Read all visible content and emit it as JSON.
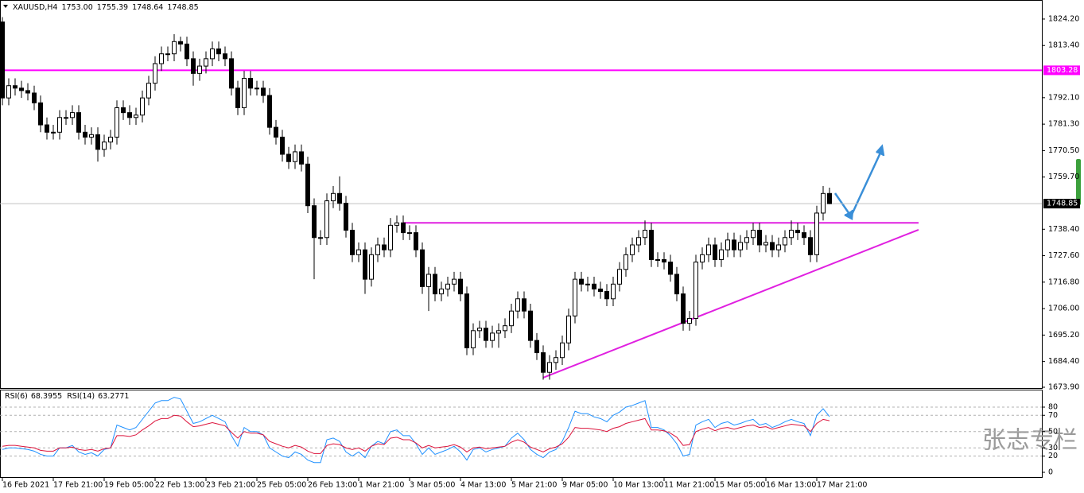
{
  "chart_data": [
    {
      "type": "candlestick",
      "title": "XAUUSD,H4",
      "header_values": [
        "1753.00",
        "1755.39",
        "1748.64",
        "1748.85"
      ],
      "open": [
        1823,
        1792,
        1797,
        1796,
        1795,
        1794,
        1790,
        1781,
        1778,
        1778,
        1784,
        1784,
        1786,
        1778,
        1776,
        1777,
        1771,
        1774,
        1776,
        1788,
        1786,
        1784,
        1785,
        1792,
        1798,
        1806,
        1810,
        1810,
        1815,
        1814,
        1808,
        1802,
        1805,
        1808,
        1812,
        1810,
        1808,
        1796,
        1788,
        1800,
        1796,
        1796,
        1793,
        1780,
        1776,
        1769,
        1766,
        1770,
        1765,
        1748,
        1735,
        1735,
        1750,
        1753,
        1749,
        1738,
        1728,
        1730,
        1718,
        1728,
        1732,
        1730,
        1740,
        1741,
        1737,
        1737,
        1730,
        1715,
        1720,
        1712,
        1714,
        1716,
        1718,
        1712,
        1690,
        1697,
        1698,
        1693,
        1696,
        1697,
        1699,
        1705,
        1710,
        1705,
        1693,
        1688,
        1680,
        1684,
        1686,
        1692,
        1703,
        1718,
        1716,
        1716,
        1714,
        1713,
        1710,
        1716,
        1722,
        1728,
        1732,
        1735,
        1738,
        1726,
        1726,
        1725,
        1720,
        1712,
        1700,
        1702,
        1725,
        1728,
        1732,
        1726,
        1730,
        1734,
        1730,
        1733,
        1735,
        1738,
        1732,
        1733,
        1730,
        1732,
        1735,
        1738,
        1737,
        1735,
        1728,
        1745,
        1753
      ],
      "high": [
        1825,
        1800,
        1800,
        1799,
        1798,
        1797,
        1793,
        1784,
        1781,
        1787,
        1787,
        1789,
        1789,
        1781,
        1780,
        1780,
        1777,
        1779,
        1791,
        1791,
        1789,
        1788,
        1795,
        1801,
        1809,
        1813,
        1813,
        1818,
        1817,
        1817,
        1811,
        1808,
        1811,
        1815,
        1815,
        1813,
        1811,
        1799,
        1803,
        1803,
        1799,
        1799,
        1796,
        1783,
        1779,
        1772,
        1773,
        1773,
        1768,
        1751,
        1738,
        1753,
        1756,
        1760,
        1752,
        1741,
        1733,
        1733,
        1731,
        1735,
        1735,
        1743,
        1744,
        1744,
        1740,
        1740,
        1733,
        1723,
        1723,
        1717,
        1719,
        1721,
        1721,
        1715,
        1700,
        1701,
        1701,
        1699,
        1700,
        1702,
        1708,
        1713,
        1713,
        1708,
        1696,
        1691,
        1687,
        1689,
        1695,
        1706,
        1721,
        1721,
        1719,
        1719,
        1717,
        1716,
        1719,
        1725,
        1731,
        1735,
        1738,
        1742,
        1741,
        1729,
        1729,
        1728,
        1723,
        1715,
        1705,
        1728,
        1731,
        1735,
        1735,
        1733,
        1737,
        1737,
        1736,
        1738,
        1741,
        1741,
        1736,
        1736,
        1735,
        1738,
        1742,
        1741,
        1740,
        1738,
        1748,
        1756,
        1755.39
      ],
      "low": [
        1789,
        1789,
        1793,
        1792,
        1791,
        1787,
        1778,
        1775,
        1775,
        1775,
        1781,
        1781,
        1775,
        1773,
        1773,
        1766,
        1768,
        1771,
        1773,
        1783,
        1781,
        1781,
        1782,
        1789,
        1795,
        1803,
        1807,
        1807,
        1811,
        1805,
        1797,
        1799,
        1802,
        1805,
        1807,
        1805,
        1793,
        1785,
        1785,
        1793,
        1793,
        1790,
        1777,
        1773,
        1766,
        1763,
        1763,
        1762,
        1745,
        1718,
        1732,
        1732,
        1747,
        1746,
        1735,
        1725,
        1725,
        1712,
        1715,
        1725,
        1727,
        1727,
        1737,
        1734,
        1734,
        1727,
        1712,
        1705,
        1709,
        1709,
        1711,
        1713,
        1709,
        1687,
        1687,
        1694,
        1690,
        1690,
        1690,
        1694,
        1696,
        1702,
        1702,
        1690,
        1685,
        1677,
        1677,
        1681,
        1683,
        1689,
        1700,
        1713,
        1713,
        1711,
        1710,
        1707,
        1707,
        1713,
        1719,
        1725,
        1729,
        1732,
        1723,
        1723,
        1722,
        1717,
        1709,
        1697,
        1697,
        1699,
        1722,
        1725,
        1723,
        1723,
        1727,
        1727,
        1727,
        1730,
        1732,
        1729,
        1729,
        1727,
        1727,
        1729,
        1732,
        1734,
        1732,
        1725,
        1725,
        1742,
        1748.64
      ],
      "close": [
        1792,
        1797,
        1796,
        1795,
        1794,
        1790,
        1781,
        1778,
        1778,
        1784,
        1784,
        1786,
        1778,
        1776,
        1777,
        1771,
        1774,
        1776,
        1788,
        1786,
        1784,
        1785,
        1792,
        1798,
        1806,
        1810,
        1810,
        1815,
        1814,
        1808,
        1802,
        1805,
        1808,
        1812,
        1810,
        1808,
        1796,
        1788,
        1800,
        1796,
        1796,
        1793,
        1780,
        1776,
        1769,
        1766,
        1770,
        1765,
        1748,
        1735,
        1735,
        1750,
        1753,
        1749,
        1738,
        1728,
        1730,
        1718,
        1728,
        1732,
        1730,
        1740,
        1741,
        1737,
        1737,
        1730,
        1715,
        1720,
        1712,
        1714,
        1716,
        1718,
        1712,
        1690,
        1697,
        1698,
        1693,
        1696,
        1697,
        1699,
        1705,
        1710,
        1705,
        1693,
        1688,
        1680,
        1684,
        1686,
        1692,
        1703,
        1718,
        1716,
        1716,
        1714,
        1713,
        1710,
        1716,
        1722,
        1728,
        1732,
        1735,
        1738,
        1726,
        1726,
        1725,
        1720,
        1712,
        1700,
        1702,
        1725,
        1728,
        1732,
        1726,
        1730,
        1734,
        1730,
        1733,
        1735,
        1738,
        1732,
        1733,
        1730,
        1732,
        1735,
        1738,
        1737,
        1735,
        1728,
        1745,
        1753,
        1748.85
      ],
      "ylim": [
        1673.25,
        1831.0
      ],
      "yticks": [
        {
          "value": 1824.2,
          "label": "1824.20"
        },
        {
          "value": 1813.4,
          "label": "1813.40"
        },
        {
          "value": 1792.1,
          "label": "1792.10"
        },
        {
          "value": 1781.3,
          "label": "1781.30"
        },
        {
          "value": 1770.5,
          "label": "1770.50"
        },
        {
          "value": 1759.7,
          "label": "1759.70"
        },
        {
          "value": 1738.4,
          "label": "1738.40"
        },
        {
          "value": 1727.6,
          "label": "1727.60"
        },
        {
          "value": 1716.8,
          "label": "1716.80"
        },
        {
          "value": 1706.0,
          "label": "1706.00"
        },
        {
          "value": 1695.2,
          "label": "1695.20"
        },
        {
          "value": 1684.4,
          "label": "1684.40"
        },
        {
          "value": 1673.9,
          "label": "1673.90"
        }
      ],
      "xticks": [
        {
          "value": 0,
          "label": "16 Feb 2021"
        },
        {
          "value": 8,
          "label": "17 Feb 21:00"
        },
        {
          "value": 16,
          "label": "19 Feb 05:00"
        },
        {
          "value": 24,
          "label": "22 Feb 13:00"
        },
        {
          "value": 32,
          "label": "23 Feb 21:00"
        },
        {
          "value": 40,
          "label": "25 Feb 05:00"
        },
        {
          "value": 48,
          "label": "26 Feb 13:00"
        },
        {
          "value": 56,
          "label": "1 Mar 21:00"
        },
        {
          "value": 64,
          "label": "3 Mar 05:00"
        },
        {
          "value": 72,
          "label": "4 Mar 13:00"
        },
        {
          "value": 80,
          "label": "5 Mar 21:00"
        },
        {
          "value": 88,
          "label": "9 Mar 05:00"
        },
        {
          "value": 96,
          "label": "10 Mar 13:00"
        },
        {
          "value": 104,
          "label": "11 Mar 21:00"
        },
        {
          "value": 112,
          "label": "15 Mar 05:00"
        },
        {
          "value": 120,
          "label": "16 Mar 13:00"
        },
        {
          "value": 128,
          "label": "17 Mar 21:00"
        }
      ],
      "hline": {
        "value": 1803.28,
        "label": "1803.28",
        "color": "#ff00ff"
      },
      "current_price": {
        "value": 1748.85,
        "label": "1748.85"
      },
      "trendlines": [
        {
          "x": [
            63,
            144
          ],
          "y": [
            1741,
            1741
          ],
          "color": "#e020e0"
        },
        {
          "x": [
            85,
            144
          ],
          "y": [
            1677.8,
            1738.2
          ],
          "color": "#e020e0"
        }
      ],
      "bull_color": "#ffffff",
      "bear_color": "#000000"
    },
    {
      "type": "line",
      "ylim": [
        0,
        100
      ],
      "yticks": [
        0,
        20,
        30,
        50,
        70,
        80
      ],
      "series": [
        {
          "name": "RSI(6)",
          "last_label": "68.3955",
          "color": "#1e90ff",
          "values": [
            28,
            30,
            30,
            29,
            28,
            26,
            22,
            20,
            20,
            30,
            30,
            33,
            25,
            22,
            24,
            20,
            28,
            30,
            58,
            55,
            52,
            55,
            65,
            75,
            85,
            88,
            88,
            92,
            90,
            75,
            60,
            62,
            66,
            70,
            66,
            62,
            45,
            32,
            55,
            50,
            50,
            46,
            30,
            25,
            20,
            18,
            25,
            22,
            15,
            12,
            12,
            40,
            42,
            38,
            25,
            20,
            25,
            18,
            32,
            38,
            35,
            50,
            52,
            45,
            45,
            35,
            22,
            30,
            22,
            25,
            28,
            32,
            25,
            15,
            28,
            30,
            25,
            28,
            30,
            32,
            42,
            48,
            40,
            28,
            22,
            18,
            25,
            28,
            38,
            55,
            75,
            72,
            72,
            68,
            66,
            62,
            70,
            74,
            80,
            82,
            85,
            88,
            55,
            55,
            52,
            45,
            35,
            20,
            22,
            58,
            62,
            65,
            55,
            60,
            62,
            58,
            60,
            63,
            65,
            58,
            60,
            55,
            58,
            62,
            65,
            62,
            60,
            45,
            70,
            78,
            68.3955
          ]
        },
        {
          "name": "RSI(14)",
          "last_label": "63.2771",
          "color": "#dc143c",
          "values": [
            32,
            33,
            33,
            32,
            31,
            30,
            27,
            26,
            26,
            30,
            30,
            31,
            28,
            27,
            28,
            26,
            29,
            30,
            45,
            45,
            44,
            46,
            52,
            57,
            63,
            66,
            66,
            70,
            69,
            62,
            56,
            57,
            59,
            61,
            59,
            57,
            49,
            42,
            50,
            48,
            48,
            46,
            38,
            35,
            32,
            30,
            33,
            31,
            26,
            23,
            23,
            33,
            35,
            34,
            30,
            28,
            30,
            26,
            32,
            35,
            34,
            42,
            43,
            40,
            40,
            36,
            30,
            33,
            30,
            31,
            32,
            34,
            31,
            25,
            30,
            31,
            29,
            30,
            31,
            32,
            37,
            40,
            37,
            31,
            28,
            25,
            29,
            31,
            35,
            43,
            55,
            54,
            54,
            53,
            52,
            50,
            54,
            56,
            60,
            62,
            64,
            66,
            52,
            52,
            51,
            48,
            43,
            33,
            34,
            50,
            53,
            55,
            51,
            54,
            55,
            53,
            55,
            57,
            58,
            55,
            56,
            53,
            55,
            57,
            59,
            58,
            57,
            50,
            60,
            65,
            63.2771
          ]
        }
      ]
    }
  ],
  "watermark": "张志专栏"
}
